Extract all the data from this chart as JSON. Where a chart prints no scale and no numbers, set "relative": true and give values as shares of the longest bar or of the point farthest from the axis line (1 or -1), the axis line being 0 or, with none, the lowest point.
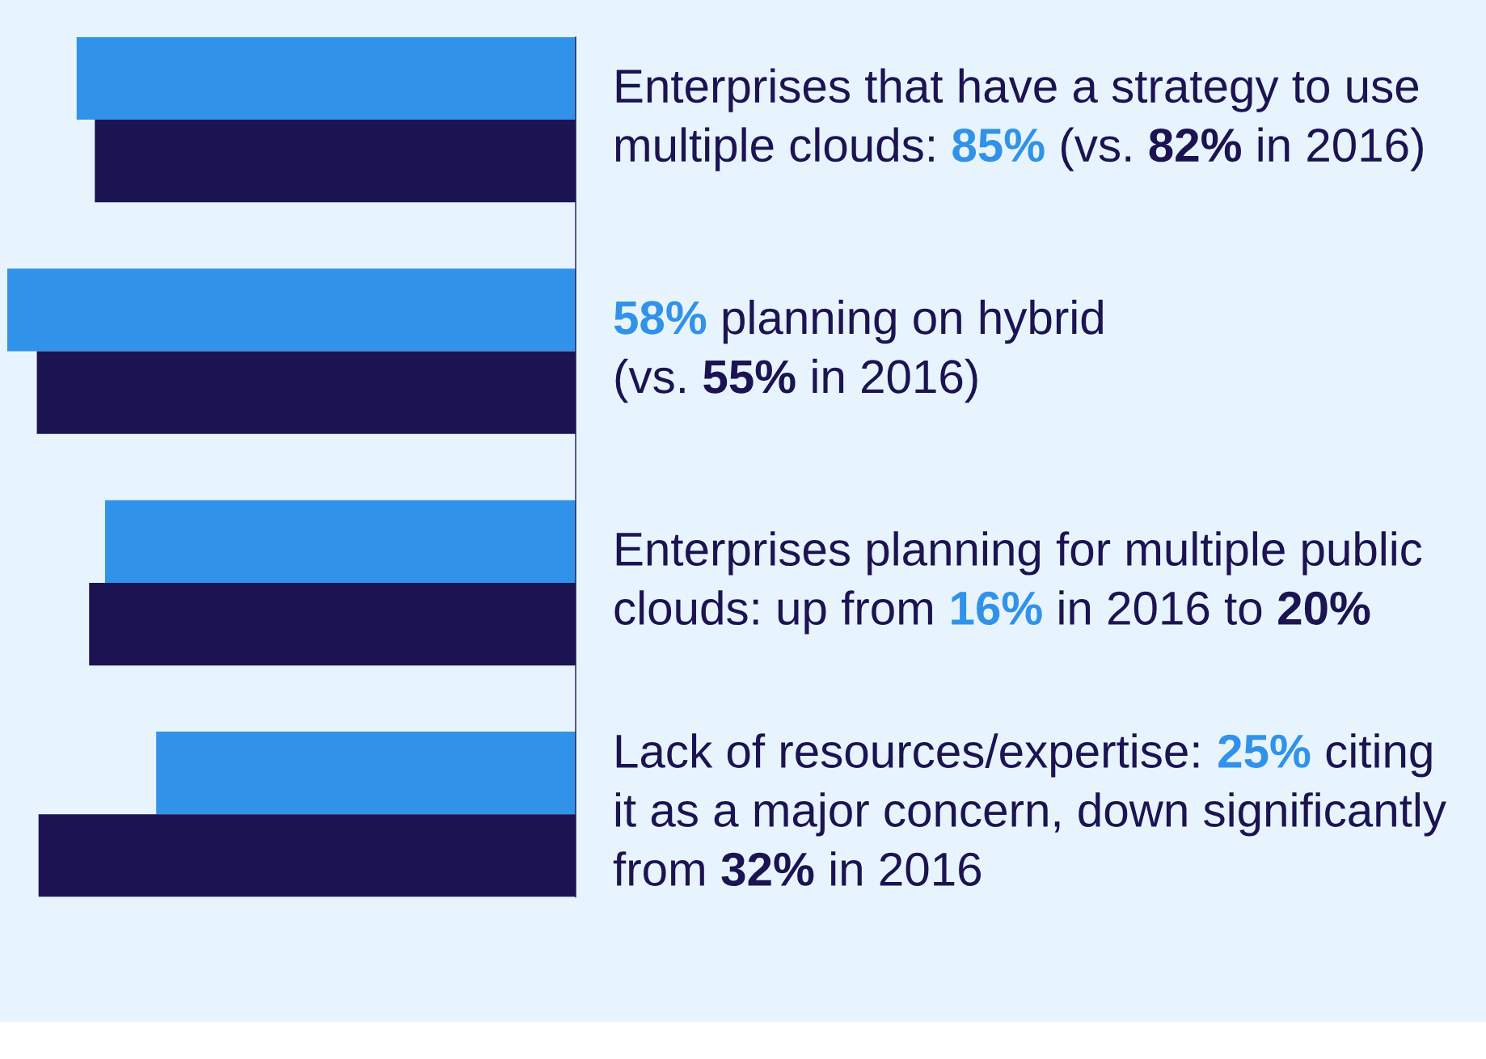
{
  "chart_data": {
    "type": "bar",
    "orientation": "horizontal",
    "relative": true,
    "categories": [
      "Enterprises that have a strategy to use\nmultiple clouds: 85% (vs. 82% in 2016)",
      "58% planning on hybrid\n(vs. 55% in 2016)",
      "Enterprises planning for multiple public\nclouds: up from 16% in 2016 to 20%",
      "Lack of resources/expertise: 25% citing\nit as a major concern, down significantly\nfrom 32% in 2016"
    ],
    "series": [
      {
        "color": "#3192e9",
        "values": [
          0.878,
          1,
          0.828,
          0.738
        ]
      },
      {
        "color": "#1c1452",
        "values": [
          0.846,
          0.948,
          0.856,
          0.945
        ]
      }
    ]
  }
}
